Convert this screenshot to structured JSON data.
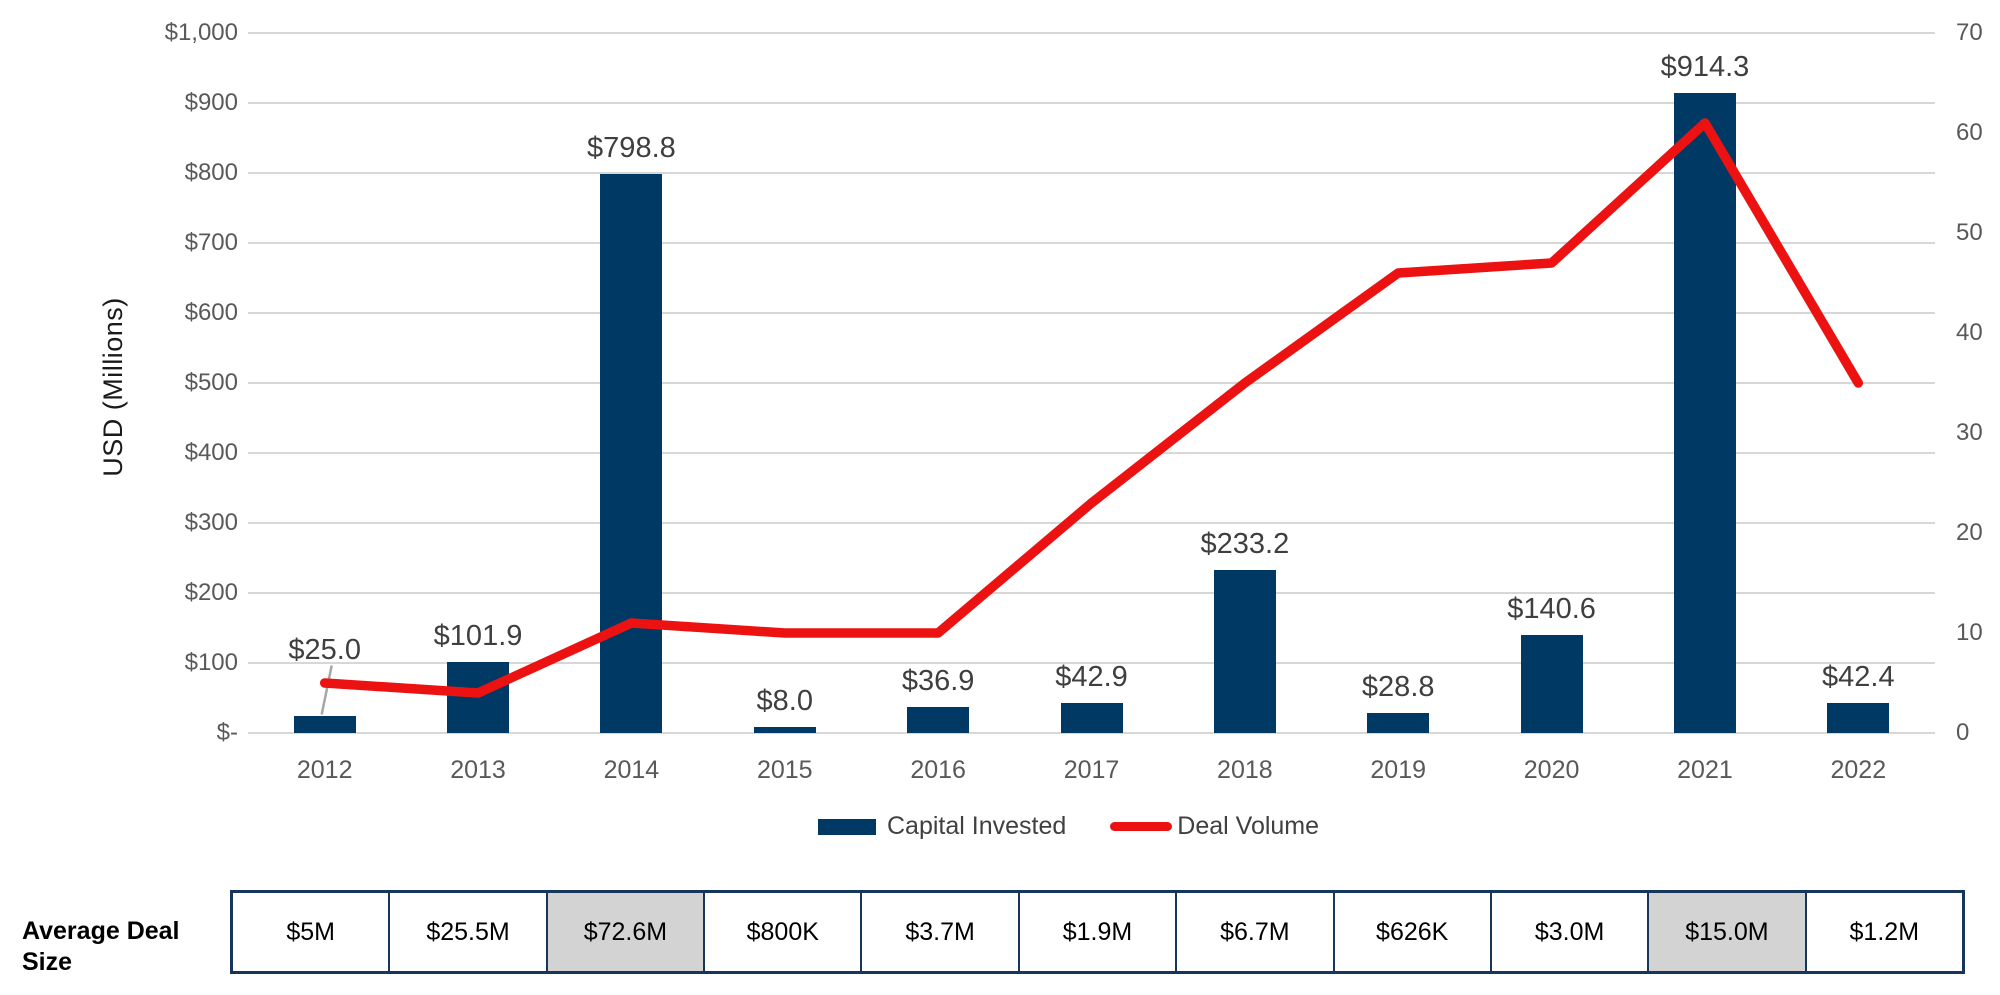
{
  "chart_data": {
    "type": "bar+line combo",
    "categories": [
      "2012",
      "2013",
      "2014",
      "2015",
      "2016",
      "2017",
      "2018",
      "2019",
      "2020",
      "2021",
      "2022"
    ],
    "series": [
      {
        "name": "Capital Invested",
        "type": "bar",
        "axis": "left",
        "values": [
          25.0,
          101.9,
          798.8,
          8.0,
          36.9,
          42.9,
          233.2,
          28.8,
          140.6,
          914.3,
          42.4
        ],
        "labels": [
          "$25.0",
          "$101.9",
          "$798.8",
          "$8.0",
          "$36.9",
          "$42.9",
          "$233.2",
          "$28.8",
          "$140.6",
          "$914.3",
          "$42.4"
        ]
      },
      {
        "name": "Deal Volume",
        "type": "line",
        "axis": "right",
        "values": [
          5,
          4,
          11,
          10,
          10,
          23,
          35,
          46,
          47,
          61,
          35
        ]
      }
    ],
    "left_axis": {
      "title": "USD (Millions)",
      "min": 0,
      "max": 1000,
      "step": 100,
      "ticks": [
        "$1,000",
        "$900",
        "$800",
        "$700",
        "$600",
        "$500",
        "$400",
        "$300",
        "$200",
        "$100",
        "$-"
      ]
    },
    "right_axis": {
      "min": 0,
      "max": 70,
      "step": 10,
      "ticks": [
        "70",
        "60",
        "50",
        "40",
        "30",
        "20",
        "10",
        "0"
      ]
    },
    "legend": [
      "Capital Invested",
      "Deal Volume"
    ],
    "gridlines": true,
    "legend_position": "bottom",
    "raised_label_index": 0
  },
  "table": {
    "row_label": "Average Deal Size",
    "values": [
      "$5M",
      "$25.5M",
      "$72.6M",
      "$800K",
      "$3.7M",
      "$1.9M",
      "$6.7M",
      "$626K",
      "$3.0M",
      "$15.0M",
      "$1.2M"
    ],
    "highlighted_indices": [
      2,
      9
    ]
  },
  "colors": {
    "bar": "#003964",
    "line": "#ED1212",
    "grid": "#D7D7D7",
    "axis_text": "#595959",
    "label_text": "#3F3F3F",
    "leader": "#A6A6A6",
    "table_border": "#16365C",
    "highlight_cell": "#D3D3D3"
  }
}
